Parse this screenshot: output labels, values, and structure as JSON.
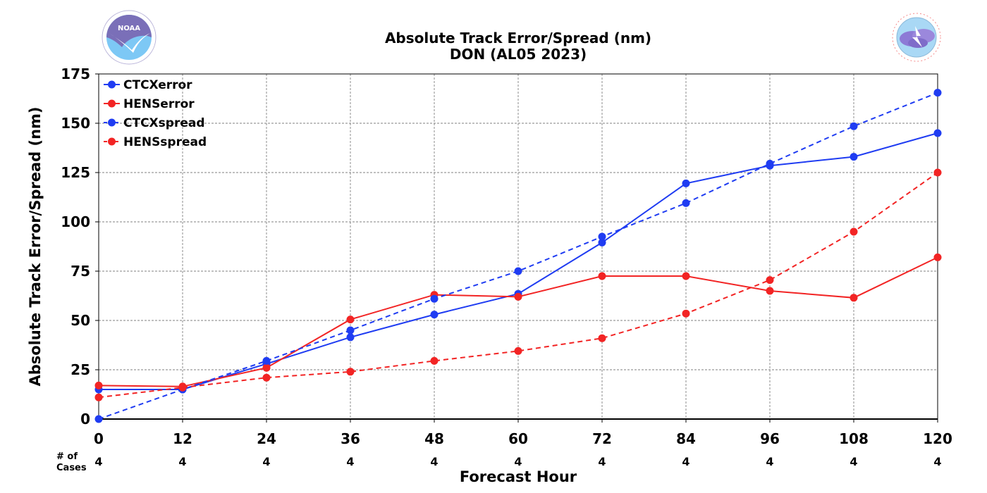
{
  "header": {
    "title_line1": "Absolute Track Error/Spread (nm)",
    "title_line2": "DON (AL05 2023)"
  },
  "logos": {
    "noaa": {
      "text": "NOAA",
      "ring_text": "NATIONAL OCEANIC AND ATMOSPHERIC ADMINISTRATION · U.S. DEPARTMENT OF COMMERCE"
    },
    "nws": {
      "ring_text": "NATIONAL WEATHER SERVICE"
    }
  },
  "cases": {
    "label_line1": "# of",
    "label_line2": "Cases",
    "values": [
      "4",
      "4",
      "4",
      "4",
      "4",
      "4",
      "4",
      "4",
      "4",
      "4",
      "4"
    ]
  },
  "colors": {
    "blue": "#1f3cf2",
    "red": "#f22424"
  },
  "chart_data": {
    "type": "line",
    "title": "Absolute Track Error/Spread (nm)\nDON (AL05 2023)",
    "xlabel": "Forecast Hour",
    "ylabel": "Absolute Track Error/Spread (nm)",
    "x": [
      0,
      12,
      24,
      36,
      48,
      60,
      72,
      84,
      96,
      108,
      120
    ],
    "xlim": [
      0,
      120
    ],
    "ylim": [
      0,
      175
    ],
    "xticks": [
      "0",
      "12",
      "24",
      "36",
      "48",
      "60",
      "72",
      "84",
      "96",
      "108",
      "120"
    ],
    "yticks": [
      "0",
      "25",
      "50",
      "75",
      "100",
      "125",
      "150",
      "175"
    ],
    "grid": true,
    "legend_position": "top-left",
    "series": [
      {
        "name": "CTCXerror",
        "color": "#1f3cf2",
        "dash": "solid",
        "values": [
          15,
          15,
          28,
          41.5,
          53,
          63.5,
          89.5,
          119.5,
          128.5,
          133,
          145
        ]
      },
      {
        "name": "HENSerror",
        "color": "#f22424",
        "dash": "solid",
        "values": [
          17,
          16.5,
          26,
          50.5,
          63,
          62,
          72.5,
          72.5,
          65,
          61.5,
          82
        ]
      },
      {
        "name": "CTCXspread",
        "color": "#1f3cf2",
        "dash": "dashed",
        "values": [
          0,
          15,
          29.5,
          45,
          61,
          75,
          92.5,
          109.5,
          129.5,
          148.5,
          165.5
        ]
      },
      {
        "name": "HENSspread",
        "color": "#f22424",
        "dash": "dashed",
        "values": [
          11,
          16,
          21,
          24,
          29.5,
          34.5,
          41,
          53.5,
          70.5,
          95,
          125
        ]
      }
    ]
  }
}
